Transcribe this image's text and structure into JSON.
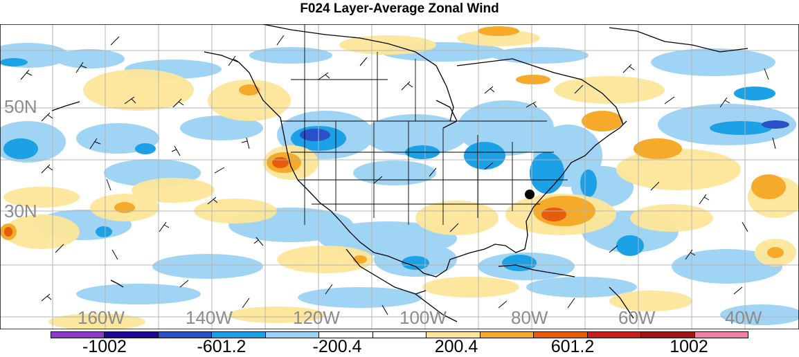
{
  "title": "F024 Layer-Average Zonal Wind",
  "latitude_labels": [
    "50N",
    "30N"
  ],
  "longitude_labels": [
    "160W",
    "140W",
    "120W",
    "100W",
    "80W",
    "60W",
    "40W"
  ],
  "colorbar": {
    "colors": [
      "#8a3cc8",
      "#1e0a96",
      "#2a50c8",
      "#1ca0e6",
      "#9ad2f5",
      "#ffffff",
      "#ffffff",
      "#fde69a",
      "#f6aa2a",
      "#e85a0c",
      "#c81e1e",
      "#a01414",
      "#f082aa"
    ],
    "labels": [
      "-1002",
      "-601.2",
      "-200.4",
      "200.4",
      "601.2",
      "1002"
    ]
  },
  "map": {
    "region": "North America and adjacent Pacific / Atlantic",
    "station_marker": "filled black circle over the southeastern United States"
  }
}
